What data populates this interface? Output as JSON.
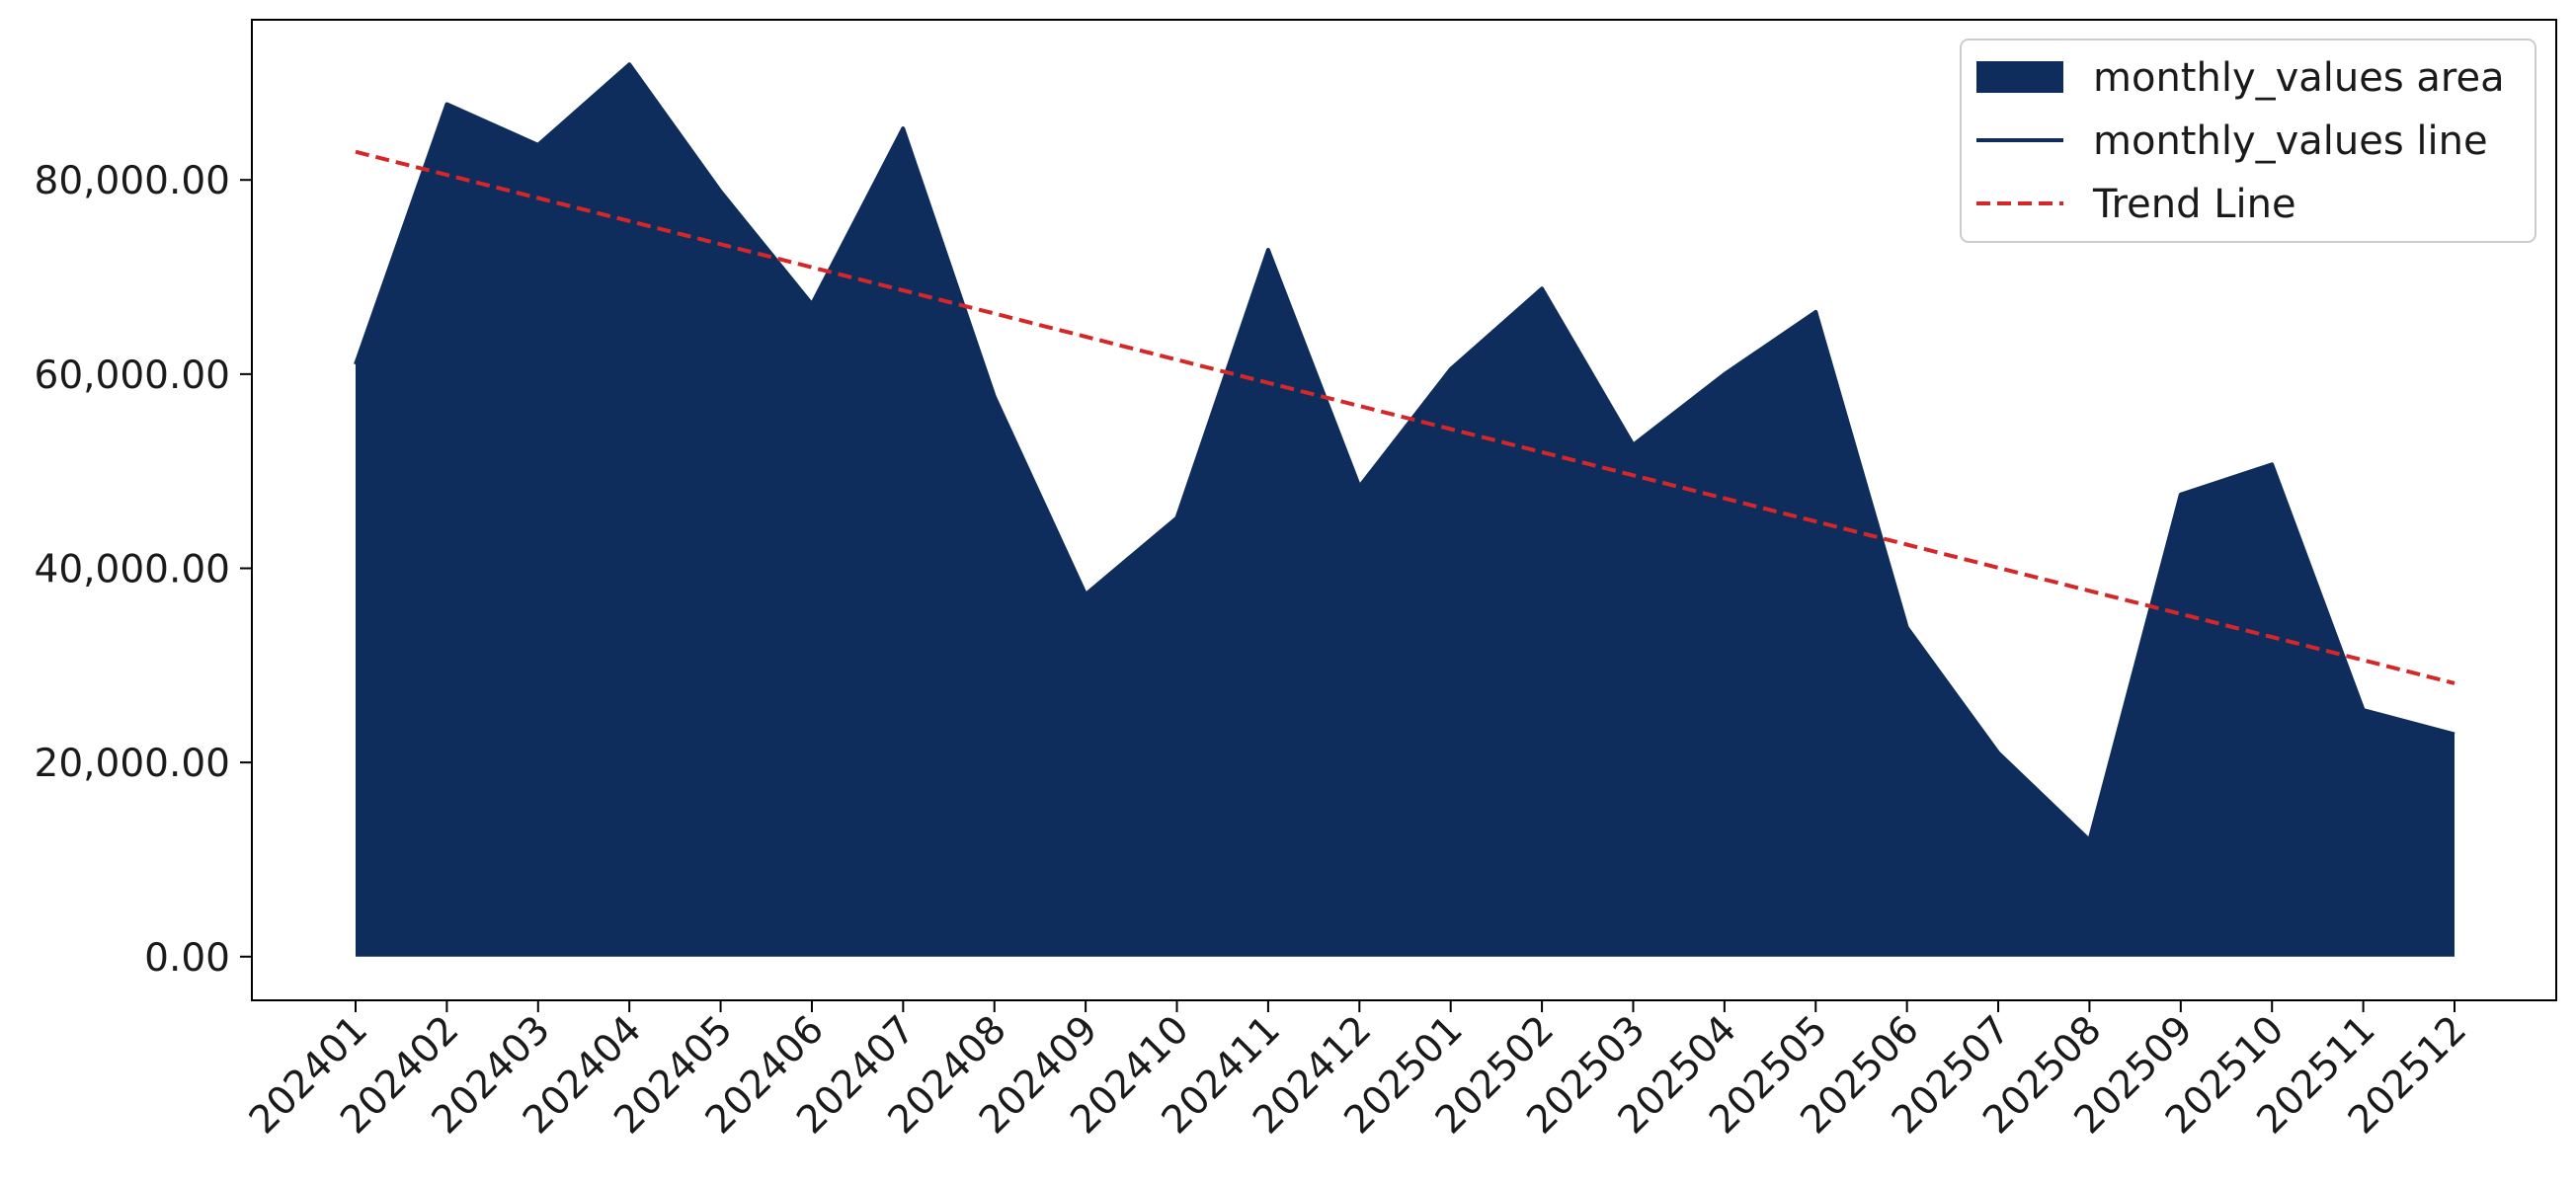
{
  "chart_data": {
    "type": "area",
    "title": "",
    "xlabel": "",
    "ylabel": "",
    "categories": [
      "202401",
      "202402",
      "202403",
      "202404",
      "202405",
      "202406",
      "202407",
      "202408",
      "202409",
      "202410",
      "202411",
      "202412",
      "202501",
      "202502",
      "202503",
      "202504",
      "202505",
      "202506",
      "202507",
      "202508",
      "202509",
      "202510",
      "202511",
      "202512"
    ],
    "series": [
      {
        "name": "monthly_values area",
        "kind": "area",
        "color": "#0f2d5c",
        "values": [
          61000,
          87800,
          83600,
          91900,
          78800,
          67200,
          85300,
          57700,
          37300,
          45200,
          72800,
          48400,
          60500,
          68800,
          52700,
          60000,
          66400,
          33900,
          21000,
          12000,
          47600,
          50700,
          25400,
          22900
        ]
      },
      {
        "name": "monthly_values line",
        "kind": "line",
        "color": "#0f2d5c",
        "values": [
          61000,
          87800,
          83600,
          91900,
          78800,
          67200,
          85300,
          57700,
          37300,
          45200,
          72800,
          48400,
          60500,
          68800,
          52700,
          60000,
          66400,
          33900,
          21000,
          12000,
          47600,
          50700,
          25400,
          22900
        ]
      },
      {
        "name": "Trend Line",
        "kind": "dashed-line",
        "color": "#d62728",
        "values": [
          82900,
          80520,
          78140,
          75760,
          73380,
          71000,
          68620,
          66240,
          63860,
          61480,
          59100,
          56720,
          54340,
          51960,
          49580,
          47200,
          44820,
          42440,
          40060,
          37680,
          35300,
          32920,
          30540,
          28160
        ]
      }
    ],
    "yticks": [
      0,
      20000,
      40000,
      60000,
      80000
    ],
    "ytick_labels": [
      "0.00",
      "20,000.00",
      "40,000.00",
      "60,000.00",
      "80,000.00"
    ],
    "ylim": [
      -4500,
      96500
    ],
    "grid": false,
    "legend": "top-right"
  }
}
